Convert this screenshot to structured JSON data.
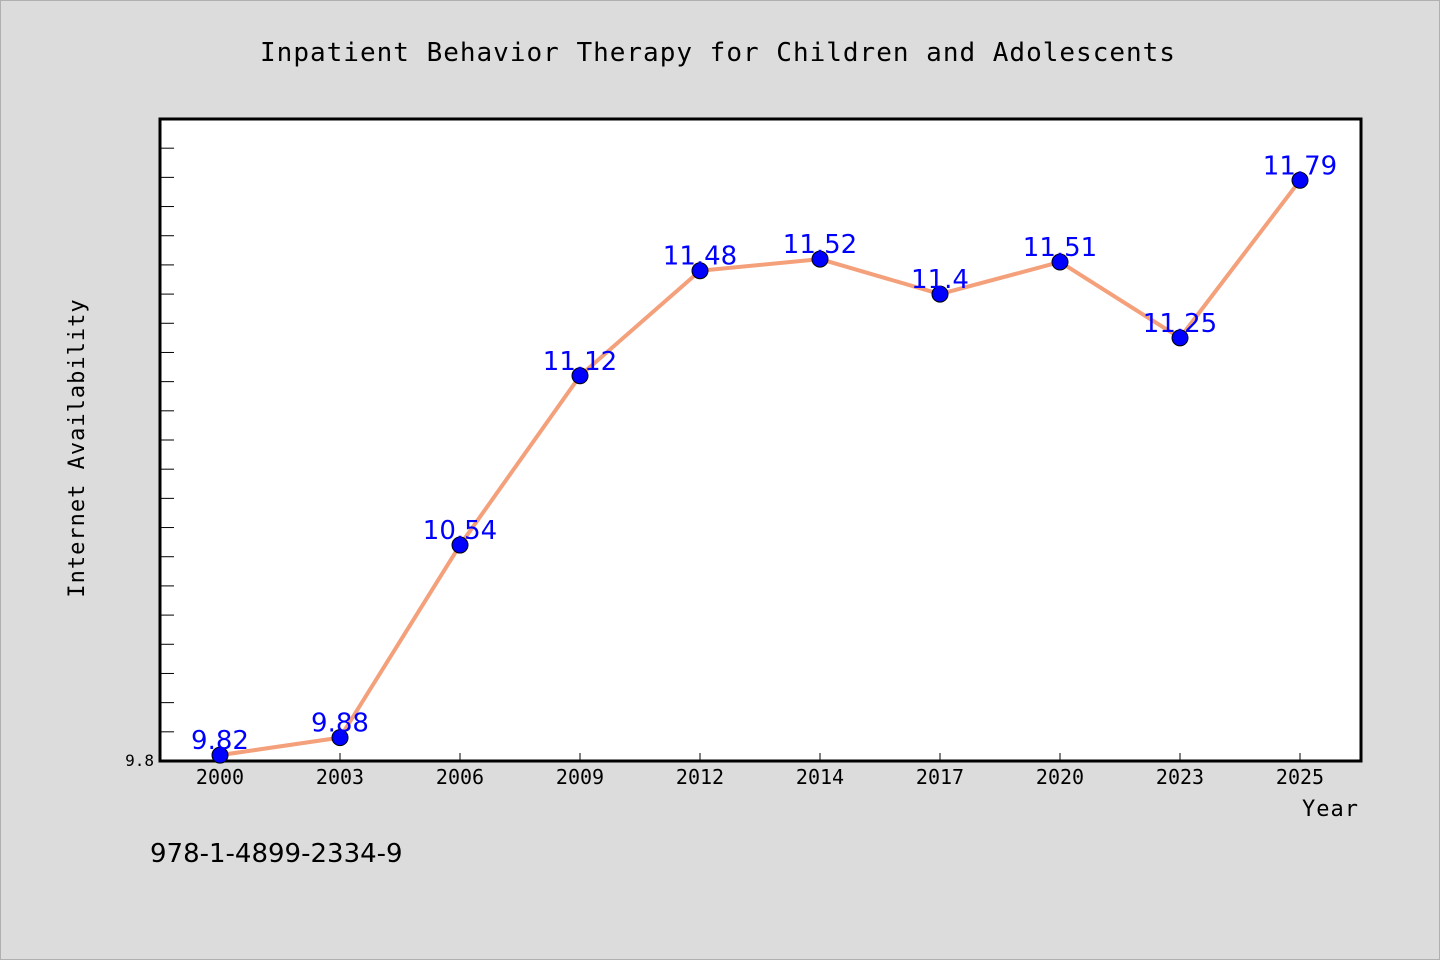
{
  "chart_data": {
    "type": "line",
    "title": "Inpatient Behavior Therapy for Children and Adolescents",
    "xlabel": "Year",
    "ylabel": "Internet Availability",
    "categories": [
      "2000",
      "2003",
      "2006",
      "2009",
      "2012",
      "2014",
      "2017",
      "2020",
      "2023",
      "2025"
    ],
    "series": [
      {
        "values": [
          9.82,
          9.88,
          10.54,
          11.12,
          11.48,
          11.52,
          11.4,
          11.51,
          11.25,
          11.79
        ],
        "labels": [
          "9.82",
          "9.88",
          "10.54",
          "11.12",
          "11.48",
          "11.52",
          "11.4",
          "11.51",
          "11.25",
          "11.79"
        ]
      }
    ],
    "ylim": [
      9.8,
      12.0
    ],
    "ytick_labels": [
      "9.8"
    ],
    "grid": false,
    "colors": {
      "line": "#f4a07a",
      "marker": "#0000ff",
      "data_label": "#0000ff",
      "background": "#dcdcdc",
      "plot_background": "#ffffff"
    }
  },
  "footnote": "978-1-4899-2334-9"
}
